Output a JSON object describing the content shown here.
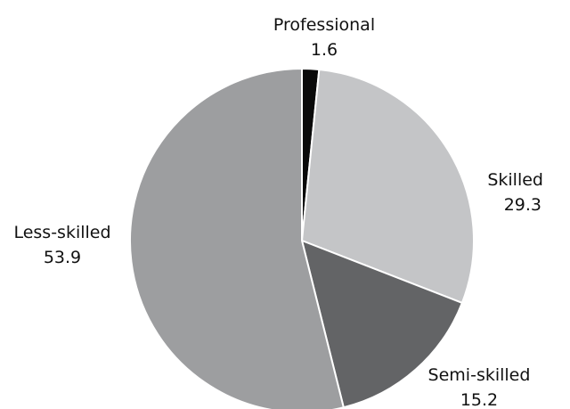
{
  "chart_data": {
    "type": "pie",
    "title": "",
    "slices": [
      {
        "label": "Professional",
        "value": 1.6,
        "value_label": "1.6",
        "color": "#0a0a0a"
      },
      {
        "label": "Skilled",
        "value": 29.3,
        "value_label": "29.3",
        "color": "#c4c5c7"
      },
      {
        "label": "Semi-skilled",
        "value": 15.2,
        "value_label": "15.2",
        "color": "#636466"
      },
      {
        "label": "Less-skilled",
        "value": 53.9,
        "value_label": "53.9",
        "color": "#9d9ea0"
      }
    ],
    "start_angle": "12 o'clock",
    "direction": "clockwise",
    "legend": "none (labels placed beside slices)"
  }
}
